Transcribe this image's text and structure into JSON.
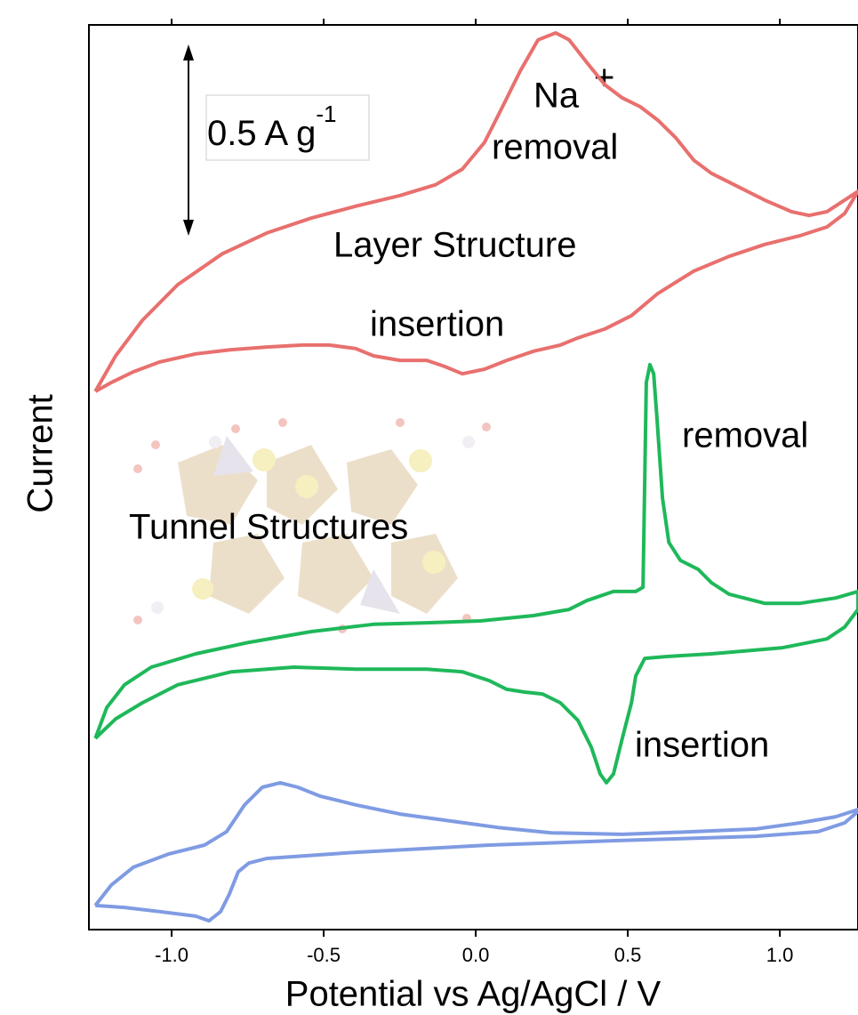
{
  "chart_data": {
    "type": "line",
    "x_label": "Potential vs Ag/AgCl / V",
    "y_label": "Current",
    "xlim": [
      -1.272,
      1.257
    ],
    "ylim": [
      0,
      2.365
    ],
    "xticks": [
      {
        "value": -1.0,
        "label": "-1.0"
      },
      {
        "value": -0.5,
        "label": "-0.5"
      },
      {
        "value": 0,
        "label": "0.0"
      },
      {
        "value": 0.5,
        "label": "0.5"
      },
      {
        "value": 1.0,
        "label": "1.0"
      }
    ],
    "scale_bar": {
      "value": 0.5,
      "label": "0.5 A g",
      "label_sup": "-1"
    },
    "annotations": [
      "Na",
      "+",
      "removal",
      "Layer Structure",
      "insertion",
      "removal",
      "Tunnel Structures",
      "insertion"
    ],
    "series": [
      {
        "color": "#e8706e",
        "x": [
          -1.251,
          -1.184,
          -1.096,
          -0.98,
          -0.833,
          -0.687,
          -0.541,
          -0.395,
          -0.249,
          -0.132,
          -0.044,
          0.029,
          0.088,
          0.146,
          0.205,
          0.263,
          0.307,
          0.365,
          0.424,
          0.482,
          0.541,
          0.599,
          0.658,
          0.716,
          0.775,
          0.863,
          0.95,
          1.038,
          1.096,
          1.155,
          1.213,
          1.257,
          1.213,
          1.155,
          1.067,
          0.95,
          0.833,
          0.716,
          0.599,
          0.512,
          0.424,
          0.336,
          0.278,
          0.19,
          0.102,
          0.029,
          -0.044,
          -0.102,
          -0.161,
          -0.249,
          -0.336,
          -0.395,
          -0.482,
          -0.57,
          -0.687,
          -0.804,
          -0.921,
          -1.038,
          -1.126,
          -1.199,
          -1.251
        ],
        "values": [
          1.407,
          1.5,
          1.593,
          1.686,
          1.767,
          1.821,
          1.86,
          1.891,
          1.919,
          1.947,
          1.988,
          2.058,
          2.151,
          2.244,
          2.326,
          2.344,
          2.326,
          2.267,
          2.209,
          2.174,
          2.151,
          2.116,
          2.07,
          2.012,
          1.977,
          1.942,
          1.907,
          1.877,
          1.867,
          1.877,
          1.907,
          1.93,
          1.872,
          1.837,
          1.814,
          1.791,
          1.76,
          1.721,
          1.663,
          1.605,
          1.57,
          1.547,
          1.528,
          1.512,
          1.488,
          1.465,
          1.453,
          1.472,
          1.488,
          1.488,
          1.5,
          1.519,
          1.528,
          1.528,
          1.523,
          1.516,
          1.505,
          1.484,
          1.458,
          1.43,
          1.407
        ]
      },
      {
        "color": "#1fb85a",
        "x": [
          -1.251,
          -1.213,
          -1.155,
          -1.067,
          -0.921,
          -0.746,
          -0.541,
          -0.336,
          -0.161,
          0.015,
          0.19,
          0.307,
          0.365,
          0.453,
          0.526,
          0.55,
          0.561,
          0.573,
          0.585,
          0.596,
          0.614,
          0.635,
          0.673,
          0.731,
          0.775,
          0.833,
          0.95,
          1.067,
          1.184,
          1.257,
          1.257,
          1.213,
          1.155,
          1.009,
          0.775,
          0.629,
          0.556,
          0.526,
          0.512,
          0.482,
          0.453,
          0.43,
          0.409,
          0.38,
          0.336,
          0.278,
          0.219,
          0.161,
          0.102,
          0.044,
          -0.044,
          -0.161,
          -0.395,
          -0.599,
          -0.804,
          -0.98,
          -1.096,
          -1.184,
          -1.251
        ],
        "values": [
          0.5,
          0.581,
          0.64,
          0.686,
          0.721,
          0.751,
          0.779,
          0.798,
          0.802,
          0.807,
          0.821,
          0.837,
          0.86,
          0.884,
          0.884,
          0.895,
          1.43,
          1.477,
          1.453,
          1.337,
          1.128,
          1.012,
          0.965,
          0.942,
          0.907,
          0.877,
          0.853,
          0.853,
          0.867,
          0.884,
          0.837,
          0.791,
          0.76,
          0.737,
          0.721,
          0.714,
          0.709,
          0.663,
          0.593,
          0.5,
          0.407,
          0.384,
          0.407,
          0.477,
          0.547,
          0.593,
          0.616,
          0.621,
          0.628,
          0.651,
          0.674,
          0.681,
          0.681,
          0.686,
          0.674,
          0.64,
          0.593,
          0.551,
          0.5
        ]
      },
      {
        "color": "#7f9be3",
        "x": [
          -1.251,
          -1.199,
          -1.126,
          -1.009,
          -0.892,
          -0.819,
          -0.76,
          -0.702,
          -0.643,
          -0.585,
          -0.512,
          -0.395,
          -0.249,
          -0.102,
          0.073,
          0.249,
          0.482,
          0.716,
          0.921,
          1.067,
          1.184,
          1.257,
          1.257,
          1.213,
          1.126,
          0.921,
          0.482,
          0.044,
          -0.395,
          -0.687,
          -0.746,
          -0.781,
          -0.81,
          -0.839,
          -0.877,
          -0.921,
          -1.038,
          -1.155,
          -1.251
        ],
        "values": [
          0.063,
          0.116,
          0.163,
          0.198,
          0.221,
          0.256,
          0.326,
          0.372,
          0.384,
          0.372,
          0.349,
          0.326,
          0.302,
          0.286,
          0.267,
          0.253,
          0.249,
          0.256,
          0.263,
          0.279,
          0.295,
          0.314,
          0.309,
          0.279,
          0.256,
          0.244,
          0.233,
          0.221,
          0.202,
          0.186,
          0.174,
          0.151,
          0.093,
          0.047,
          0.023,
          0.035,
          0.047,
          0.058,
          0.063
        ]
      }
    ]
  }
}
